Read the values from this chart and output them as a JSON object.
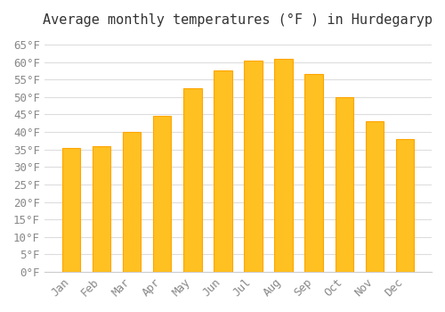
{
  "title": "Average monthly temperatures (°F ) in Hurdegaryp",
  "months": [
    "Jan",
    "Feb",
    "Mar",
    "Apr",
    "May",
    "Jun",
    "Jul",
    "Aug",
    "Sep",
    "Oct",
    "Nov",
    "Dec"
  ],
  "values": [
    35.5,
    36.0,
    40.0,
    44.5,
    52.5,
    57.5,
    60.5,
    61.0,
    56.5,
    50.0,
    43.0,
    38.0
  ],
  "bar_color_face": "#FFC021",
  "bar_color_edge": "#FFA500",
  "ylim": [
    0,
    68
  ],
  "yticks": [
    0,
    5,
    10,
    15,
    20,
    25,
    30,
    35,
    40,
    45,
    50,
    55,
    60,
    65
  ],
  "background_color": "#FFFFFF",
  "grid_color": "#DDDDDD",
  "title_fontsize": 11,
  "tick_fontsize": 9,
  "font_family": "monospace"
}
